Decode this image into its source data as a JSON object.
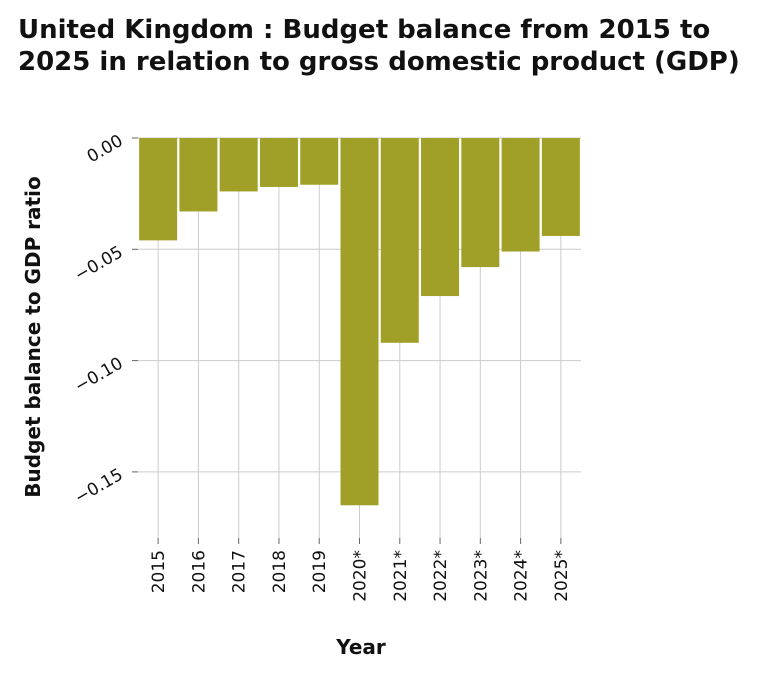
{
  "chart_data": {
    "type": "bar",
    "title": "United Kingdom : Budget balance from 2015 to 2025 in relation to gross domestic product (GDP)",
    "xlabel": "Year",
    "ylabel": "Budget balance to GDP ratio",
    "categories": [
      "2015",
      "2016",
      "2017",
      "2018",
      "2019",
      "2020*",
      "2021*",
      "2022*",
      "2023*",
      "2024*",
      "2025*"
    ],
    "values": [
      -0.046,
      -0.033,
      -0.024,
      -0.022,
      -0.021,
      -0.165,
      -0.092,
      -0.071,
      -0.058,
      -0.051,
      -0.044
    ],
    "y_ticks": [
      0.0,
      -0.05,
      -0.1,
      -0.15
    ],
    "y_tick_labels": [
      "0.00",
      "−0.05",
      "−0.10",
      "−0.15"
    ],
    "ylim": [
      -0.18,
      0.0
    ],
    "grid": true,
    "legend": "none",
    "bar_color": "#a0a028",
    "grid_color": "#cccccc"
  }
}
